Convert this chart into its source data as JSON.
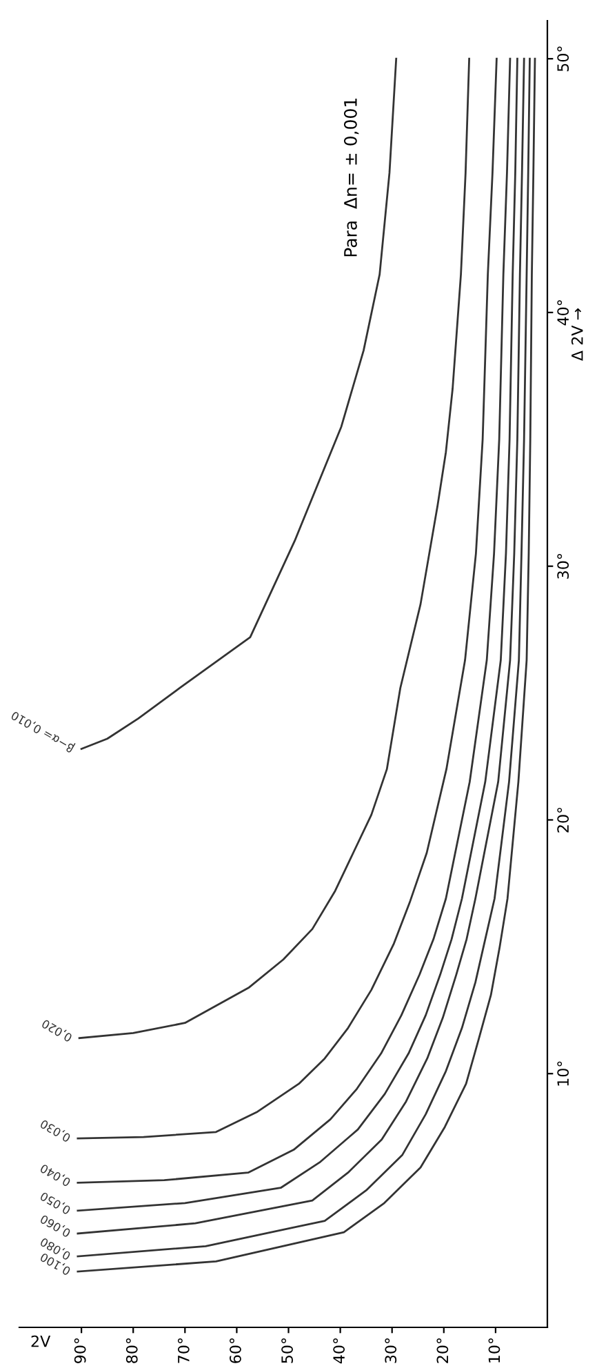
{
  "chart_data": {
    "type": "line",
    "xlabel": "2V",
    "ylabel": "Δ 2V →",
    "annotations": [
      "Para  Δn= ± 0,001"
    ],
    "xlim": [
      102,
      0
    ],
    "ylim": [
      0,
      51.5
    ],
    "xticks": [
      {
        "value": 90,
        "label": "90°"
      },
      {
        "value": 80,
        "label": "80°"
      },
      {
        "value": 70,
        "label": "70°"
      },
      {
        "value": 60,
        "label": "60°"
      },
      {
        "value": 50,
        "label": "50°"
      },
      {
        "value": 40,
        "label": "40°"
      },
      {
        "value": 30,
        "label": "30°"
      },
      {
        "value": 20,
        "label": "20°"
      },
      {
        "value": 10,
        "label": "10°"
      }
    ],
    "yticks": [
      {
        "value": 10,
        "label": "10°"
      },
      {
        "value": 20,
        "label": "20°"
      },
      {
        "value": 30,
        "label": "30°"
      },
      {
        "value": 40,
        "label": "40°"
      },
      {
        "value": 50,
        "label": "50°"
      }
    ],
    "grid": false,
    "legend": false,
    "marker": "none",
    "line_style": "solid",
    "series": [
      {
        "name": "β−α= 0,010",
        "color": "#333333",
        "x": [
          90,
          85,
          79,
          71,
          57.4,
          48.8,
          39.8,
          35.5,
          32.4,
          30.5,
          29.2
        ],
        "values": [
          22.8,
          23.2,
          24,
          25.2,
          27.2,
          31,
          35.5,
          38.5,
          41.5,
          45.5,
          50
        ]
      },
      {
        "name": "0,020",
        "color": "#333333",
        "x": [
          90.4,
          80,
          70,
          57.6,
          51,
          45.4,
          41,
          37.5,
          34,
          31,
          28.4,
          24.5,
          21.2,
          19.6,
          18.3,
          16.7,
          15.8,
          15.1
        ],
        "values": [
          11.4,
          11.6,
          12,
          13.4,
          14.5,
          15.7,
          17.2,
          18.7,
          20.2,
          22,
          25.2,
          28.5,
          32.4,
          34.5,
          37,
          41.5,
          45.5,
          50
        ]
      },
      {
        "name": "0,030",
        "color": "#333333",
        "x": [
          90.7,
          78,
          64,
          56,
          48,
          43,
          38.5,
          34,
          29.7,
          26.5,
          23.3,
          19.5,
          15.9,
          13.8,
          12.5,
          11.5,
          10.6,
          9.8
        ],
        "values": [
          7.45,
          7.5,
          7.7,
          8.5,
          9.6,
          10.6,
          11.8,
          13.3,
          15.1,
          16.8,
          18.7,
          22,
          26.3,
          30.5,
          35,
          41.5,
          45.5,
          50
        ]
      },
      {
        "name": "0,040",
        "color": "#333333",
        "x": [
          90.7,
          74,
          57.8,
          49,
          41.9,
          36.8,
          32.1,
          28.2,
          24.7,
          22,
          19.6,
          15,
          11.7,
          10.3,
          9.3,
          8.5,
          7.8,
          7.2
        ],
        "values": [
          5.7,
          5.8,
          6.1,
          7.0,
          8.2,
          9.4,
          10.8,
          12.3,
          13.9,
          15.3,
          16.9,
          21.5,
          26.3,
          30.5,
          35,
          41.5,
          45.5,
          50
        ]
      },
      {
        "name": "0,050",
        "color": "#333333",
        "x": [
          90.7,
          70,
          51.5,
          44,
          36.6,
          31.4,
          26.8,
          23.5,
          20.7,
          18.5,
          16.5,
          12,
          9.0,
          8,
          7.3,
          6.7,
          6.2,
          5.8
        ],
        "values": [
          4.6,
          4.9,
          5.5,
          6.5,
          7.8,
          9.2,
          10.8,
          12.3,
          13.9,
          15.3,
          16.9,
          21.5,
          26.3,
          30.5,
          35,
          41.5,
          45.5,
          50
        ]
      },
      {
        "name": "0,060",
        "color": "#333333",
        "x": [
          90.7,
          68,
          45.4,
          38.5,
          32,
          27.3,
          23.2,
          20.2,
          17.6,
          15.6,
          13.9,
          9.5,
          7.2,
          6.4,
          5.8,
          5.3,
          4.9,
          4.5
        ],
        "values": [
          3.7,
          4.1,
          5.0,
          6.1,
          7.4,
          8.9,
          10.6,
          12.2,
          13.9,
          15.3,
          16.9,
          21.5,
          26.3,
          30.5,
          35,
          41.5,
          45.5,
          50
        ]
      },
      {
        "name": "0,080",
        "color": "#333333",
        "x": [
          90.7,
          66,
          43,
          35,
          28,
          23.5,
          19.6,
          16.5,
          13.9,
          12,
          10.2,
          7.4,
          5.5,
          5,
          4.5,
          4.0,
          3.7,
          3.4
        ],
        "values": [
          2.8,
          3.2,
          4.2,
          5.4,
          6.8,
          8.4,
          10.1,
          11.8,
          13.6,
          15.3,
          16.9,
          21.5,
          26.3,
          30.5,
          35,
          41.5,
          45.5,
          50
        ]
      },
      {
        "name": "0,100",
        "color": "#333333",
        "x": [
          90.7,
          64,
          39.3,
          31.5,
          24.5,
          19.8,
          15.7,
          13.2,
          10.9,
          9.2,
          7.7,
          5.6,
          4.0,
          3.6,
          3.3,
          3.0,
          2.7,
          2.4
        ],
        "values": [
          2.2,
          2.6,
          3.75,
          4.9,
          6.3,
          7.9,
          9.6,
          11.4,
          13.1,
          15,
          16.9,
          21.5,
          26.3,
          30.5,
          35,
          41.5,
          45.5,
          50
        ]
      }
    ]
  }
}
